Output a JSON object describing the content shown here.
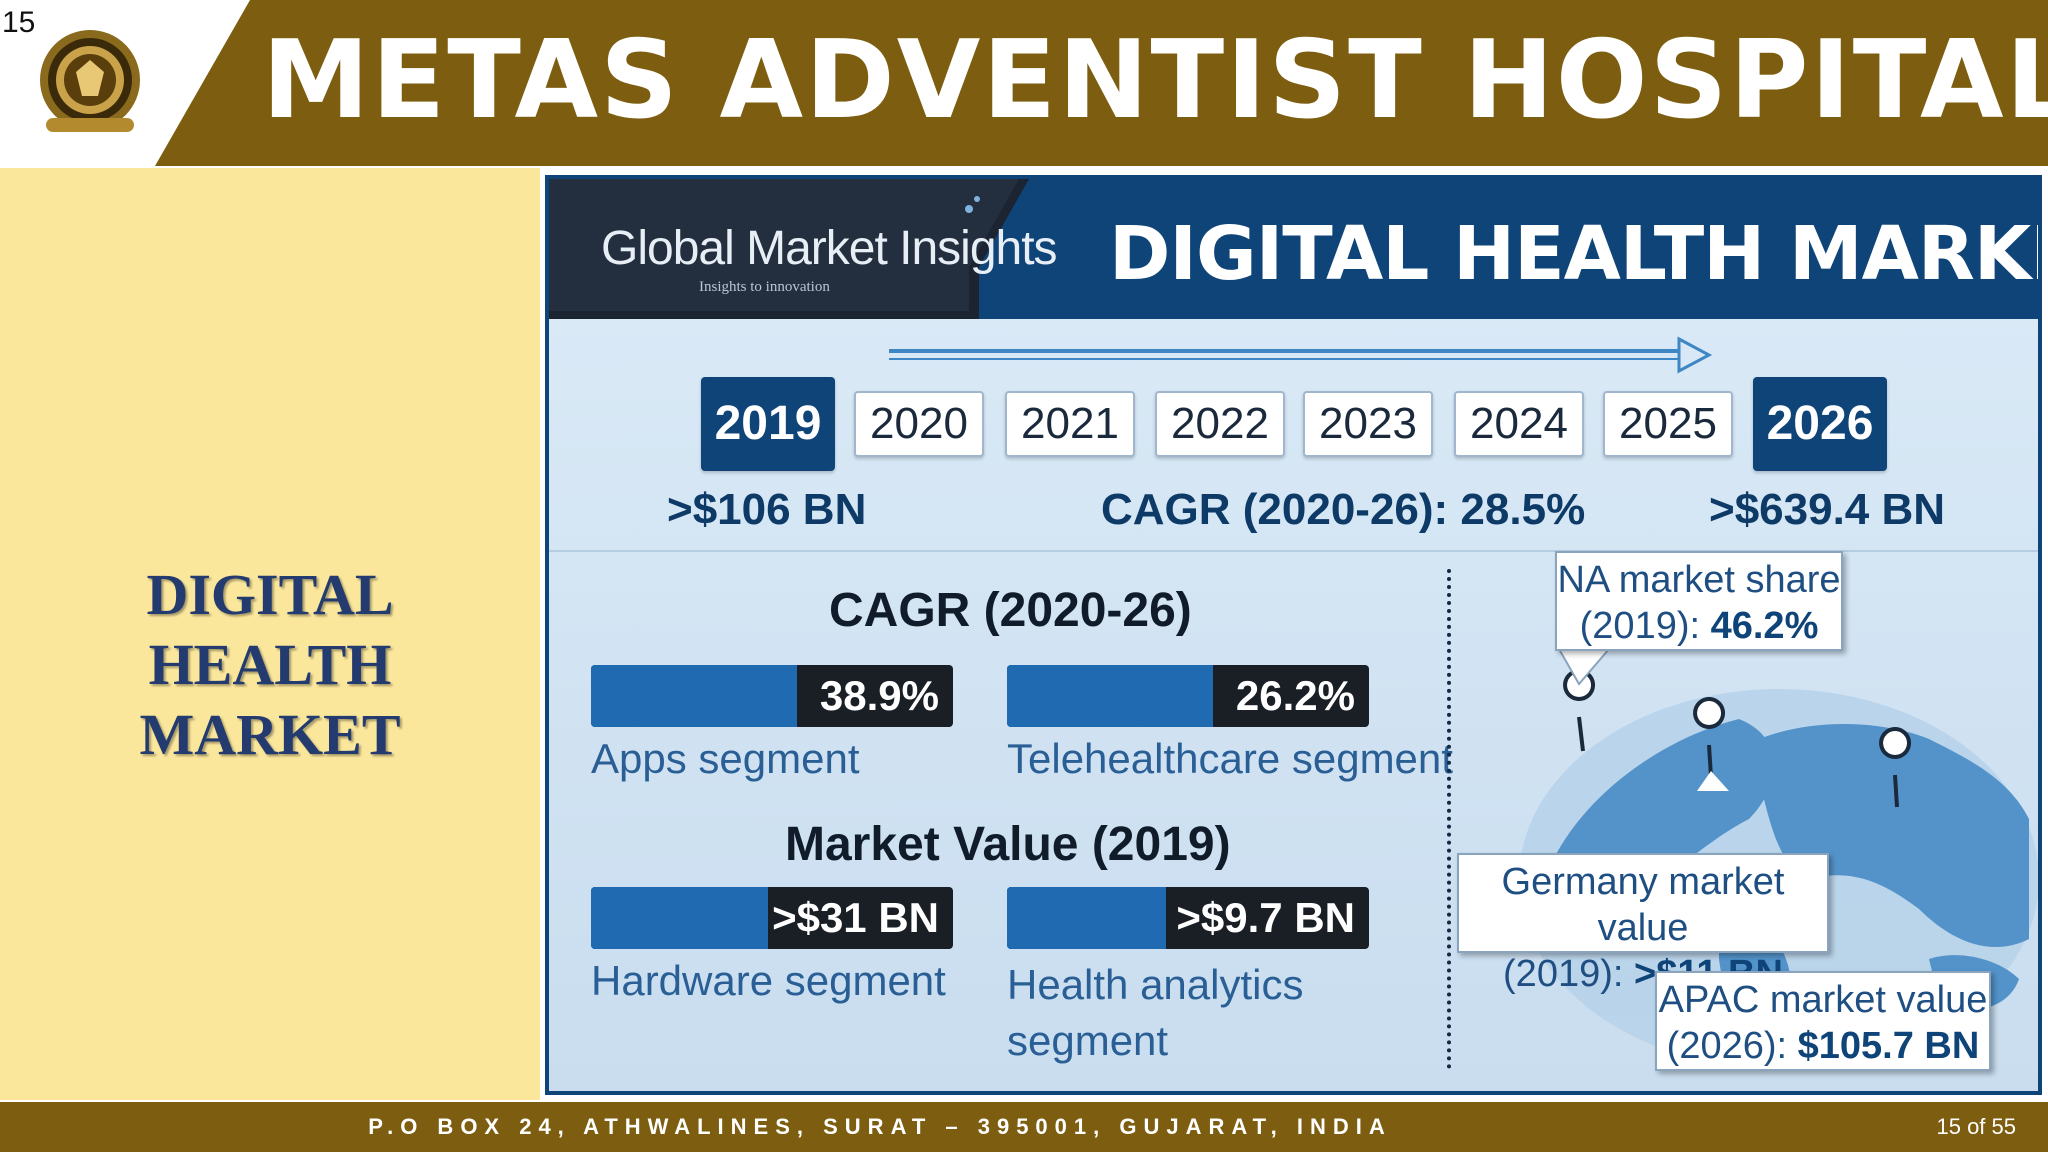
{
  "slide": {
    "number": "15",
    "hospital_title": "METAS ADVENTIST HOSPITAL",
    "left_title_line1": "DIGITAL HEALTH",
    "left_title_line2": "MARKET"
  },
  "infographic": {
    "brand": "Global Market Insights",
    "brand_tagline": "Insights to innovation",
    "title": "DIGITAL HEALTH MARKET",
    "years": [
      "2019",
      "2020",
      "2021",
      "2022",
      "2023",
      "2024",
      "2025",
      "2026"
    ],
    "start_value": ">$106 BN",
    "cagr_overall": "CAGR (2020-26): 28.5%",
    "end_value": ">$639.4 BN",
    "cagr_title": "CAGR (2020-26)",
    "cagr_bars": [
      {
        "value": "38.9%",
        "label": "Apps segment",
        "fill": 0.57
      },
      {
        "value": "26.2%",
        "label": "Telehealthcare segment",
        "fill": 0.57
      }
    ],
    "market_value_title": "Market Value (2019)",
    "value_bars": [
      {
        "value": ">$31 BN",
        "label": "Hardware segment",
        "fill": 0.49
      },
      {
        "value": ">$9.7 BN",
        "label_line1": "Health analytics",
        "label_line2": "segment",
        "fill": 0.44
      }
    ],
    "callouts": {
      "na": {
        "line1": "NA market share",
        "line2_prefix": "(2019): ",
        "line2_value": "46.2%"
      },
      "germany": {
        "line1": "Germany market value",
        "line2_prefix": "(2019): ",
        "line2_value": ">$11 BN"
      },
      "apac": {
        "line1": "APAC market value",
        "line2_prefix": "(2026): ",
        "line2_value": "$105.7 BN"
      }
    }
  },
  "footer": {
    "address": "P.O BOX 24, ATHWALINES, SURAT – 395001, GUJARAT, INDIA",
    "page": "15 of 55"
  },
  "colors": {
    "header_brown": "#7d5e10",
    "left_panel": "#fbe79c",
    "navy": "#0f4478"
  }
}
